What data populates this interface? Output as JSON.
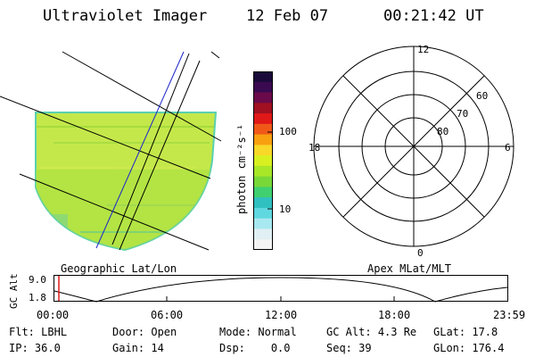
{
  "header": {
    "instrument": "Ultraviolet Imager",
    "date": "12 Feb 07",
    "time": "00:21:42 UT"
  },
  "colorbar": {
    "unit_label": "photon cm⁻²s⁻¹",
    "ticks": [
      {
        "label": "100",
        "value": 100
      },
      {
        "label": "10",
        "value": 10
      }
    ],
    "colors": [
      "#1a0a3a",
      "#3a0a50",
      "#6a0a4a",
      "#a01020",
      "#e01818",
      "#f05818",
      "#f8a010",
      "#f8d828",
      "#d8f020",
      "#a8e628",
      "#78d838",
      "#40d070",
      "#30c0c0",
      "#60d8e0",
      "#a8e8f0",
      "#e0f0f4",
      "#f4f4f4"
    ]
  },
  "map": {
    "left_caption": "Geographic Lat/Lon",
    "right_caption": "Apex MLat/MLT",
    "fill_color": "#c4e84a",
    "edge_color": "#5ad0b0"
  },
  "polar": {
    "mlt_labels": {
      "top": "12",
      "left": "18",
      "right": "6",
      "bottom": "0"
    },
    "lat_labels": [
      "60",
      "70",
      "80"
    ]
  },
  "altitude_plot": {
    "ylabel": "GC Alt",
    "yticks": [
      "9.0",
      "1.8"
    ],
    "xticks": [
      "00:00",
      "06:00",
      "12:00",
      "18:00",
      "23:59"
    ],
    "marker_color": "#e01818"
  },
  "status": {
    "row1": [
      {
        "label": "Flt:",
        "value": "LBHL"
      },
      {
        "label": "Door:",
        "value": "Open"
      },
      {
        "label": "Mode:",
        "value": "Normal"
      },
      {
        "label": "GC Alt:",
        "value": "4.3 Re"
      },
      {
        "label": "GLat:",
        "value": "17.8"
      }
    ],
    "row2": [
      {
        "label": "IP:",
        "value": "36.0"
      },
      {
        "label": "Gain:",
        "value": "14"
      },
      {
        "label": "Dsp:",
        "value": "0.0"
      },
      {
        "label": "Seq:",
        "value": "39"
      },
      {
        "label": "GLon:",
        "value": "176.4"
      }
    ]
  }
}
